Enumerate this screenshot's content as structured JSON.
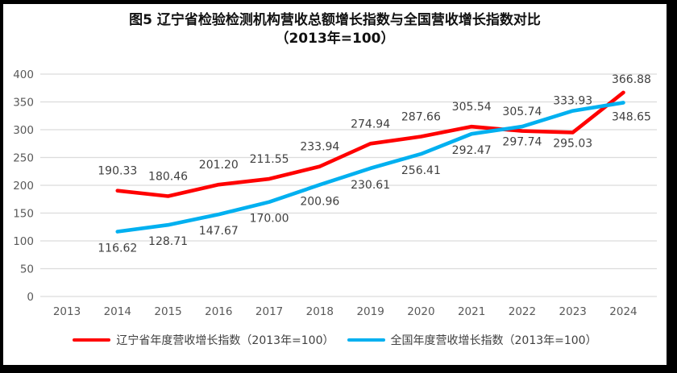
{
  "title": {
    "line1": "图5  辽宁省检验检测机构营收总额增长指数与全国营收增长指数对比",
    "line2": "（2013年=100）"
  },
  "legend": {
    "items": [
      {
        "label": "辽宁省年度营收增长指数（2013年=100）"
      },
      {
        "label": "全国年度营收增长指数（2013年=100）"
      }
    ]
  },
  "chart_data": {
    "type": "line",
    "title": "图5 辽宁省检验检测机构营收总额增长指数与全国营收增长指数对比（2013年=100）",
    "x": [
      "2013",
      "2014",
      "2015",
      "2016",
      "2017",
      "2018",
      "2019",
      "2020",
      "2021",
      "2022",
      "2023",
      "2024"
    ],
    "series": [
      {
        "id": "liaoning",
        "name": "辽宁省年度营收增长指数（2013年=100）",
        "color": "#FF0000",
        "values": [
          null,
          190.33,
          180.46,
          201.2,
          211.55,
          233.94,
          274.94,
          287.66,
          305.54,
          297.74,
          295.03,
          366.88
        ],
        "label_pos": [
          null,
          "above",
          "above",
          "above",
          "above",
          "above",
          "above",
          "above",
          "above",
          "below",
          "below",
          "above"
        ],
        "label_dy": [
          null,
          null,
          null,
          null,
          null,
          null,
          null,
          null,
          null,
          18,
          18,
          -12
        ],
        "label_dx": [
          null,
          null,
          null,
          null,
          null,
          null,
          null,
          null,
          null,
          null,
          null,
          10
        ]
      },
      {
        "id": "national",
        "name": "全国年度营收增长指数（2013年=100）",
        "color": "#00B0F0",
        "values": [
          null,
          116.62,
          128.71,
          147.67,
          170.0,
          200.96,
          230.61,
          256.41,
          292.47,
          305.74,
          333.93,
          348.65
        ],
        "label_pos": [
          null,
          "below",
          "below",
          "below",
          "below",
          "below",
          "below",
          "below",
          "below",
          "above",
          "above",
          "below"
        ],
        "label_dy": [
          null,
          null,
          null,
          null,
          null,
          null,
          null,
          null,
          null,
          -14,
          -8,
          22
        ],
        "label_dx": [
          null,
          null,
          null,
          null,
          null,
          null,
          null,
          null,
          null,
          null,
          null,
          10
        ]
      }
    ],
    "ylim": [
      0,
      400
    ],
    "ytick_step": 50,
    "yticks": [
      "0",
      "50",
      "100",
      "150",
      "200",
      "250",
      "300",
      "350",
      "400"
    ],
    "grid": true,
    "legend_position": "bottom",
    "colors": {
      "grid": "#DCDCDC",
      "axis_text": "#595959",
      "data_label": "#404040"
    }
  }
}
